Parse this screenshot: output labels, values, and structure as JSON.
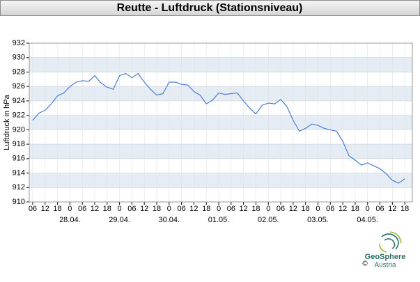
{
  "chart_data": {
    "type": "line",
    "title": "Reutte - Luftdruck (Stationsniveau)",
    "y_label": "Luftdruck in hPa",
    "x": [
      "27.04. 06:00",
      "27.04. 09:00",
      "27.04. 12:00",
      "27.04. 15:00",
      "27.04. 18:00",
      "27.04. 21:00",
      "28.04. 00:00",
      "28.04. 03:00",
      "28.04. 06:00",
      "28.04. 09:00",
      "28.04. 12:00",
      "28.04. 15:00",
      "28.04. 18:00",
      "28.04. 21:00",
      "29.04. 00:00",
      "29.04. 03:00",
      "29.04. 06:00",
      "29.04. 09:00",
      "29.04. 12:00",
      "29.04. 15:00",
      "29.04. 18:00",
      "29.04. 21:00",
      "30.04. 00:00",
      "30.04. 03:00",
      "30.04. 06:00",
      "30.04. 09:00",
      "30.04. 12:00",
      "30.04. 15:00",
      "30.04. 18:00",
      "30.04. 21:00",
      "01.05. 00:00",
      "01.05. 03:00",
      "01.05. 06:00",
      "01.05. 09:00",
      "01.05. 12:00",
      "01.05. 15:00",
      "01.05. 18:00",
      "01.05. 21:00",
      "02.05. 00:00",
      "02.05. 03:00",
      "02.05. 06:00",
      "02.05. 09:00",
      "02.05. 12:00",
      "02.05. 15:00",
      "02.05. 18:00",
      "02.05. 21:00",
      "03.05. 00:00",
      "03.05. 03:00",
      "03.05. 06:00",
      "03.05. 09:00",
      "03.05. 12:00",
      "03.05. 15:00",
      "03.05. 18:00",
      "03.05. 21:00",
      "04.05. 00:00",
      "04.05. 03:00",
      "04.05. 06:00",
      "04.05. 09:00",
      "04.05. 12:00",
      "04.05. 15:00",
      "04.05. 18:00"
    ],
    "series": [
      {
        "name": "Luftdruck",
        "color": "#4a7fd4",
        "values": [
          921.3,
          922.3,
          922.7,
          923.6,
          924.7,
          925.1,
          926.0,
          926.6,
          926.8,
          926.7,
          927.5,
          926.5,
          925.9,
          925.6,
          927.5,
          927.8,
          927.2,
          927.8,
          926.6,
          925.6,
          924.8,
          925.0,
          926.6,
          926.6,
          926.3,
          926.2,
          925.3,
          924.8,
          923.6,
          924.1,
          925.1,
          924.9,
          925.0,
          925.1,
          924.0,
          923.0,
          922.2,
          923.4,
          923.7,
          923.6,
          924.2,
          923.2,
          921.3,
          919.8,
          920.2,
          920.8,
          920.6,
          920.2,
          920.0,
          919.8,
          918.4,
          916.4,
          915.8,
          915.1,
          915.4,
          915.0,
          914.6,
          913.9,
          913.0,
          912.6,
          913.2
        ]
      }
    ],
    "xlim": [
      "27.04. 04:20",
      "04.05. 21:40"
    ],
    "xticks": [
      {
        "value": "27.04. 06:00",
        "label": "06"
      },
      {
        "value": "27.04. 12:00",
        "label": "12"
      },
      {
        "value": "27.04. 18:00",
        "label": "18"
      },
      {
        "value": "28.04. 00:00",
        "label": "0"
      },
      {
        "value": "28.04. 06:00",
        "label": "06"
      },
      {
        "value": "28.04. 12:00",
        "label": "12"
      },
      {
        "value": "28.04. 18:00",
        "label": "18"
      },
      {
        "value": "29.04. 00:00",
        "label": "0"
      },
      {
        "value": "29.04. 06:00",
        "label": "06"
      },
      {
        "value": "29.04. 12:00",
        "label": "12"
      },
      {
        "value": "29.04. 18:00",
        "label": "18"
      },
      {
        "value": "30.04. 00:00",
        "label": "0"
      },
      {
        "value": "30.04. 06:00",
        "label": "06"
      },
      {
        "value": "30.04. 12:00",
        "label": "12"
      },
      {
        "value": "30.04. 18:00",
        "label": "18"
      },
      {
        "value": "01.05. 00:00",
        "label": "0"
      },
      {
        "value": "01.05. 06:00",
        "label": "06"
      },
      {
        "value": "01.05. 12:00",
        "label": "12"
      },
      {
        "value": "01.05. 18:00",
        "label": "18"
      },
      {
        "value": "02.05. 00:00",
        "label": "0"
      },
      {
        "value": "02.05. 06:00",
        "label": "06"
      },
      {
        "value": "02.05. 12:00",
        "label": "12"
      },
      {
        "value": "02.05. 18:00",
        "label": "18"
      },
      {
        "value": "03.05. 00:00",
        "label": "0"
      },
      {
        "value": "03.05. 06:00",
        "label": "06"
      },
      {
        "value": "03.05. 12:00",
        "label": "12"
      },
      {
        "value": "03.05. 18:00",
        "label": "18"
      },
      {
        "value": "04.05. 00:00",
        "label": "0"
      },
      {
        "value": "04.05. 06:00",
        "label": "06"
      },
      {
        "value": "04.05. 12:00",
        "label": "12"
      },
      {
        "value": "04.05. 18:00",
        "label": "18"
      }
    ],
    "day_labels": [
      {
        "value": "28.04. 00:00",
        "label": "28.04."
      },
      {
        "value": "29.04. 00:00",
        "label": "29.04."
      },
      {
        "value": "30.04. 00:00",
        "label": "30.04."
      },
      {
        "value": "01.05. 00:00",
        "label": "01.05."
      },
      {
        "value": "02.05. 00:00",
        "label": "02.05."
      },
      {
        "value": "03.05. 00:00",
        "label": "03.05."
      },
      {
        "value": "04.05. 00:00",
        "label": "04.05."
      }
    ],
    "ylim": [
      910,
      932
    ],
    "yticks": [
      910,
      912,
      914,
      916,
      918,
      920,
      922,
      924,
      926,
      928,
      930,
      932
    ],
    "grid": true,
    "bands": true
  },
  "logo": {
    "name": "GeoSphere",
    "sub": "Austria",
    "copyright": "©"
  }
}
